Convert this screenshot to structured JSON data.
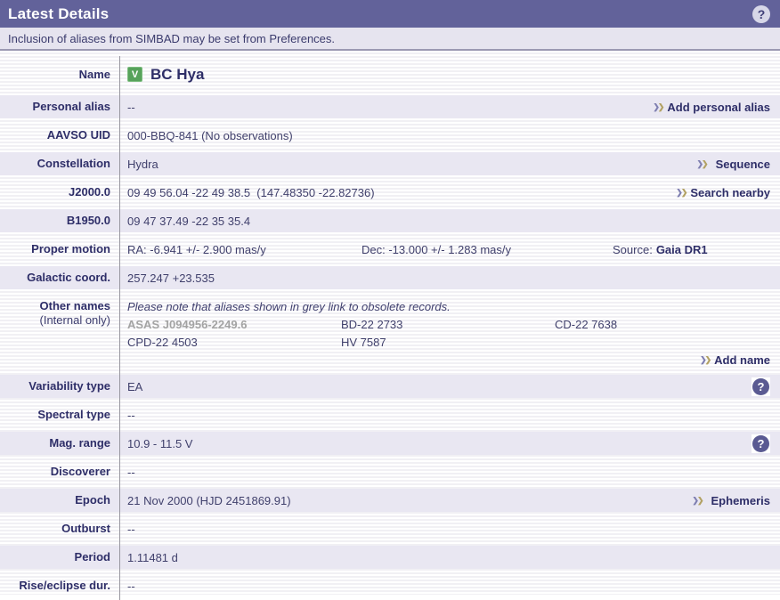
{
  "header": {
    "title": "Latest Details"
  },
  "notice": "Inclusion of aliases from SIMBAD may be set from Preferences.",
  "icons": {
    "chevron": "❯",
    "help": "?"
  },
  "star": {
    "badge": "V",
    "name": "BC Hya"
  },
  "colors": {
    "header_bg": "#62629a",
    "notice_bg": "#e6e4ef",
    "shaded_row_bg": "#e9e7f2",
    "label_text": "#2e2e68",
    "badge_green": "#57a25b",
    "chevron_blue": "#7f7fb1",
    "chevron_gold": "#b2a163",
    "obsolete_grey": "#a3a3a3"
  },
  "rows": {
    "name": {
      "label": "Name"
    },
    "personal_alias": {
      "label": "Personal alias",
      "value": "--",
      "link": "Add personal alias"
    },
    "aavso_uid": {
      "label": "AAVSO UID",
      "value": "000-BBQ-841 (No observations)"
    },
    "constellation": {
      "label": "Constellation",
      "value": "Hydra",
      "link": "Sequence"
    },
    "j2000": {
      "label": "J2000.0",
      "value": "09 49 56.04 -22 49 38.5  (147.48350 -22.82736)",
      "link": "Search nearby"
    },
    "b1950": {
      "label": "B1950.0",
      "value": "09 47 37.49 -22 35 35.4"
    },
    "proper_motion": {
      "label": "Proper motion",
      "ra": "RA: -6.941 +/- 2.900 mas/y",
      "dec": "Dec: -13.000 +/- 1.283 mas/y",
      "source_label": "Source:",
      "source_value": "Gaia DR1"
    },
    "galactic": {
      "label": "Galactic coord.",
      "value": "257.247 +23.535"
    },
    "other_names": {
      "label": "Other names",
      "sublabel": "(Internal only)",
      "note": "Please note that aliases shown in grey link to obsolete records.",
      "aliases": [
        {
          "text": "ASAS J094956-2249.6"
        },
        {
          "text": "BD-22 2733"
        },
        {
          "text": "CD-22 7638"
        },
        {
          "text": "CPD-22 4503"
        },
        {
          "text": "HV 7587"
        }
      ],
      "link": "Add name"
    },
    "variability_type": {
      "label": "Variability type",
      "value": "EA"
    },
    "spectral_type": {
      "label": "Spectral type",
      "value": "--"
    },
    "mag_range": {
      "label": "Mag. range",
      "value": "10.9 - 11.5 V"
    },
    "discoverer": {
      "label": "Discoverer",
      "value": "--"
    },
    "epoch": {
      "label": "Epoch",
      "value": "21 Nov 2000 (HJD 2451869.91)",
      "link": "Ephemeris"
    },
    "outburst": {
      "label": "Outburst",
      "value": "--"
    },
    "period": {
      "label": "Period",
      "value": "1.11481 d"
    },
    "rise_dur": {
      "label": "Rise/eclipse dur.",
      "value": "--"
    }
  }
}
